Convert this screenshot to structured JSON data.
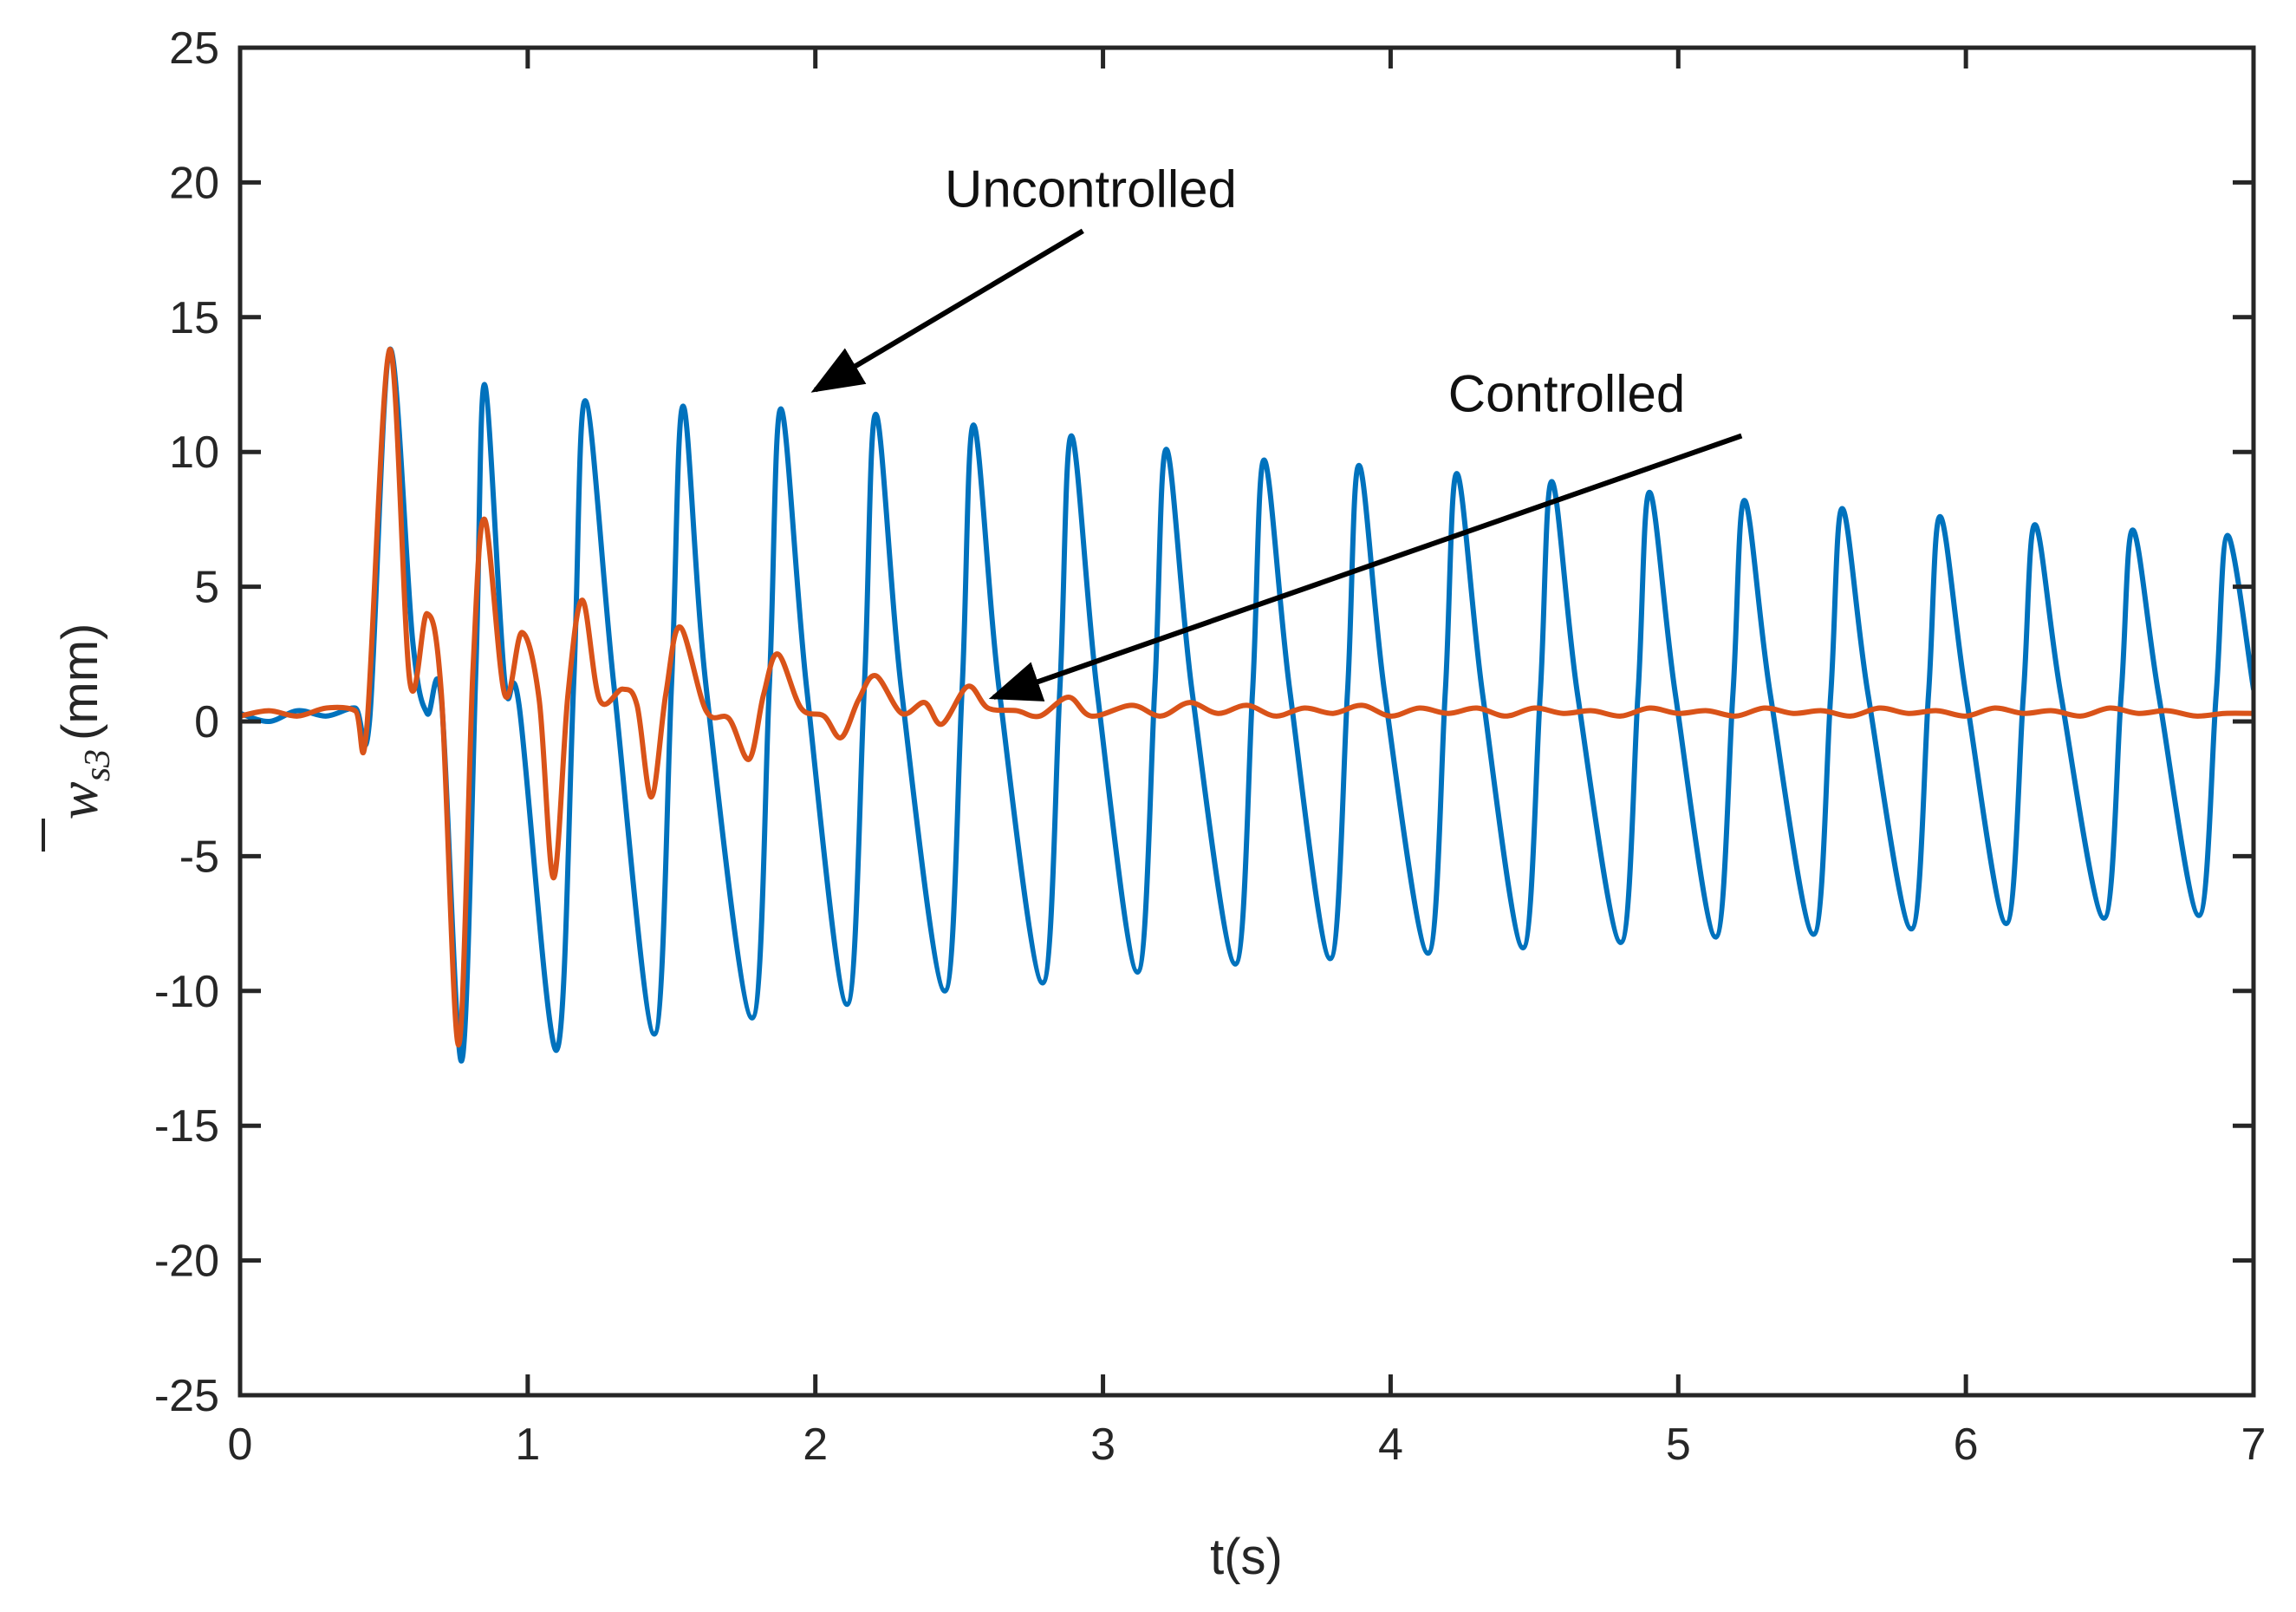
{
  "chart_data": {
    "type": "line",
    "title": "",
    "xlabel": "t(s)",
    "ylabel": {
      "symbol": "w",
      "subscript": "s3",
      "unit": "(mm)"
    },
    "xlim": [
      0,
      7
    ],
    "ylim": [
      -25,
      25
    ],
    "x_ticks": [
      0,
      1,
      2,
      3,
      4,
      5,
      6,
      7
    ],
    "y_ticks": [
      -25,
      -20,
      -15,
      -10,
      -5,
      0,
      5,
      10,
      15,
      20,
      25
    ],
    "x_tick_labels": [
      "0",
      "1",
      "2",
      "3",
      "4",
      "5",
      "6",
      "7"
    ],
    "y_tick_labels": [
      "-25",
      "-20",
      "-15",
      "-10",
      "-5",
      "0",
      "5",
      "10",
      "15",
      "20",
      "25"
    ],
    "grid": false,
    "series": [
      {
        "name": "Uncontrolled",
        "color": "#0072BD",
        "points": [
          [
            0,
            0.3
          ],
          [
            0.1,
            0
          ],
          [
            0.2,
            0.4
          ],
          [
            0.3,
            0.2
          ],
          [
            0.4,
            0.5
          ],
          [
            0.45,
            0
          ],
          [
            0.52,
            13.8
          ],
          [
            0.6,
            3
          ],
          [
            0.65,
            0.3
          ],
          [
            0.7,
            0.8
          ],
          [
            0.77,
            -12.6
          ],
          [
            0.82,
            2
          ],
          [
            0.85,
            12.5
          ],
          [
            0.92,
            1.5
          ],
          [
            0.97,
            0.6
          ],
          [
            1.1,
            -12.2
          ],
          [
            1.16,
            1.5
          ],
          [
            1.2,
            11.9
          ],
          [
            1.3,
            1.3
          ],
          [
            1.44,
            -11.6
          ],
          [
            1.5,
            1.4
          ],
          [
            1.54,
            11.7
          ],
          [
            1.62,
            1.3
          ],
          [
            1.78,
            -11.0
          ],
          [
            1.84,
            1.3
          ],
          [
            1.88,
            11.6
          ],
          [
            1.97,
            1.2
          ],
          [
            2.11,
            -10.5
          ],
          [
            2.17,
            1.2
          ],
          [
            2.21,
            11.4
          ],
          [
            2.3,
            1.1
          ],
          [
            2.45,
            -10.0
          ],
          [
            2.51,
            1.2
          ],
          [
            2.55,
            11.0
          ],
          [
            2.64,
            1.1
          ],
          [
            2.79,
            -9.7
          ],
          [
            2.85,
            1.2
          ],
          [
            2.89,
            10.6
          ],
          [
            2.98,
            1.1
          ],
          [
            3.12,
            -9.3
          ],
          [
            3.18,
            1.2
          ],
          [
            3.22,
            10.1
          ],
          [
            3.31,
            1.1
          ],
          [
            3.46,
            -9.0
          ],
          [
            3.52,
            1.1
          ],
          [
            3.56,
            9.7
          ],
          [
            3.65,
            1.1
          ],
          [
            3.79,
            -8.8
          ],
          [
            3.85,
            1.1
          ],
          [
            3.89,
            9.5
          ],
          [
            3.98,
            1.0
          ],
          [
            4.13,
            -8.6
          ],
          [
            4.19,
            1.1
          ],
          [
            4.23,
            9.2
          ],
          [
            4.32,
            1.0
          ],
          [
            4.46,
            -8.4
          ],
          [
            4.52,
            1.0
          ],
          [
            4.56,
            8.9
          ],
          [
            4.65,
            1.0
          ],
          [
            4.8,
            -8.2
          ],
          [
            4.86,
            1.0
          ],
          [
            4.9,
            8.5
          ],
          [
            4.99,
            1.0
          ],
          [
            5.13,
            -8.0
          ],
          [
            5.19,
            1.0
          ],
          [
            5.23,
            8.2
          ],
          [
            5.32,
            1.0
          ],
          [
            5.47,
            -7.9
          ],
          [
            5.53,
            1.0
          ],
          [
            5.57,
            7.9
          ],
          [
            5.66,
            1.0
          ],
          [
            5.81,
            -7.7
          ],
          [
            5.87,
            1.0
          ],
          [
            5.91,
            7.6
          ],
          [
            6.0,
            1.0
          ],
          [
            6.14,
            -7.5
          ],
          [
            6.2,
            1.0
          ],
          [
            6.24,
            7.3
          ],
          [
            6.33,
            1.0
          ],
          [
            6.48,
            -7.3
          ],
          [
            6.54,
            1.0
          ],
          [
            6.58,
            7.1
          ],
          [
            6.67,
            1.0
          ],
          [
            6.81,
            -7.2
          ],
          [
            6.87,
            1.0
          ],
          [
            6.91,
            6.9
          ],
          [
            7.0,
            1.2
          ]
        ]
      },
      {
        "name": "Controlled",
        "color": "#D95319",
        "points": [
          [
            0,
            0.2
          ],
          [
            0.1,
            0.4
          ],
          [
            0.2,
            0.2
          ],
          [
            0.3,
            0.5
          ],
          [
            0.4,
            0.4
          ],
          [
            0.44,
            -0.3
          ],
          [
            0.52,
            13.8
          ],
          [
            0.59,
            1.5
          ],
          [
            0.65,
            4.0
          ],
          [
            0.7,
            1.0
          ],
          [
            0.76,
            -12.0
          ],
          [
            0.81,
            2.0
          ],
          [
            0.85,
            7.5
          ],
          [
            0.92,
            1.0
          ],
          [
            0.98,
            3.3
          ],
          [
            1.04,
            0.8
          ],
          [
            1.09,
            -5.8
          ],
          [
            1.14,
            1.0
          ],
          [
            1.19,
            4.5
          ],
          [
            1.25,
            0.8
          ],
          [
            1.33,
            1.2
          ],
          [
            1.38,
            0.6
          ],
          [
            1.43,
            -2.8
          ],
          [
            1.48,
            1.0
          ],
          [
            1.53,
            3.5
          ],
          [
            1.62,
            0.4
          ],
          [
            1.7,
            0.1
          ],
          [
            1.77,
            -1.4
          ],
          [
            1.82,
            1.0
          ],
          [
            1.87,
            2.5
          ],
          [
            1.95,
            0.5
          ],
          [
            2.03,
            0.2
          ],
          [
            2.09,
            -0.6
          ],
          [
            2.15,
            0.8
          ],
          [
            2.21,
            1.7
          ],
          [
            2.3,
            0.3
          ],
          [
            2.38,
            0.7
          ],
          [
            2.44,
            -0.1
          ],
          [
            2.53,
            1.3
          ],
          [
            2.6,
            0.5
          ],
          [
            2.7,
            0.4
          ],
          [
            2.78,
            0.2
          ],
          [
            2.88,
            0.9
          ],
          [
            2.96,
            0.2
          ],
          [
            3.1,
            0.6
          ],
          [
            3.2,
            0.2
          ],
          [
            3.3,
            0.7
          ],
          [
            3.4,
            0.3
          ],
          [
            3.5,
            0.6
          ],
          [
            3.6,
            0.2
          ],
          [
            3.7,
            0.5
          ],
          [
            3.8,
            0.3
          ],
          [
            3.9,
            0.6
          ],
          [
            4.0,
            0.2
          ],
          [
            4.1,
            0.5
          ],
          [
            4.2,
            0.3
          ],
          [
            4.3,
            0.5
          ],
          [
            4.4,
            0.2
          ],
          [
            4.5,
            0.5
          ],
          [
            4.6,
            0.3
          ],
          [
            4.7,
            0.4
          ],
          [
            4.8,
            0.2
          ],
          [
            4.9,
            0.5
          ],
          [
            5.0,
            0.3
          ],
          [
            5.1,
            0.4
          ],
          [
            5.2,
            0.2
          ],
          [
            5.3,
            0.5
          ],
          [
            5.4,
            0.3
          ],
          [
            5.5,
            0.4
          ],
          [
            5.6,
            0.2
          ],
          [
            5.7,
            0.5
          ],
          [
            5.8,
            0.3
          ],
          [
            5.9,
            0.4
          ],
          [
            6.0,
            0.2
          ],
          [
            6.1,
            0.5
          ],
          [
            6.2,
            0.3
          ],
          [
            6.3,
            0.4
          ],
          [
            6.4,
            0.2
          ],
          [
            6.5,
            0.5
          ],
          [
            6.6,
            0.3
          ],
          [
            6.7,
            0.4
          ],
          [
            6.8,
            0.2
          ],
          [
            6.9,
            0.3
          ],
          [
            7.0,
            0.3
          ]
        ]
      }
    ],
    "annotations": [
      {
        "text": "Uncontrolled",
        "text_at": [
          2.45,
          19.1
        ],
        "arrow_from": [
          2.93,
          18.2
        ],
        "arrow_to": [
          2.0,
          12.3
        ]
      },
      {
        "text": "Controlled",
        "text_at": [
          4.2,
          11.5
        ],
        "arrow_from": [
          5.22,
          10.6
        ],
        "arrow_to": [
          2.62,
          0.9
        ]
      }
    ]
  }
}
